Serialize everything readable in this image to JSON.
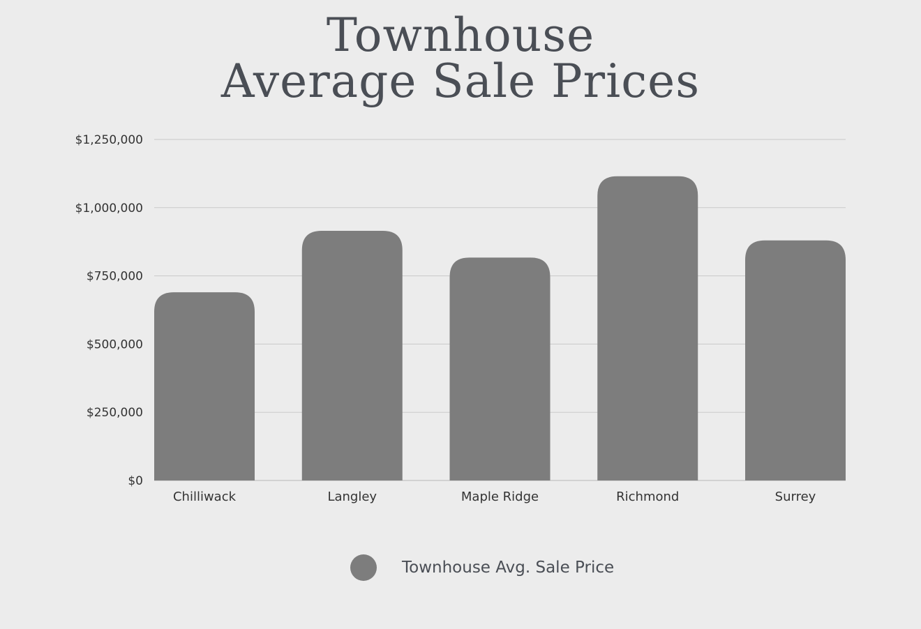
{
  "title": {
    "line1": "Townhouse",
    "line2": "Average Sale Prices"
  },
  "colors": {
    "background": "#ececec",
    "bar": "#7d7d7d",
    "grid": "#c9c9c9",
    "text": "#4a4e55",
    "tick_text": "#333333"
  },
  "legend": {
    "label": "Townhouse Avg. Sale Price",
    "position": "bottom-center"
  },
  "chart_data": {
    "type": "bar",
    "categories": [
      "Chilliwack",
      "Langley",
      "Maple Ridge",
      "Richmond",
      "Surrey"
    ],
    "series": [
      {
        "name": "Townhouse Avg. Sale Price",
        "values": [
          690000,
          915000,
          817000,
          1115000,
          880000
        ]
      }
    ],
    "title": "Townhouse Average Sale Prices",
    "xlabel": "",
    "ylabel": "",
    "ylim": [
      0,
      1250000
    ],
    "yticks": [
      0,
      250000,
      500000,
      750000,
      1000000,
      1250000
    ],
    "ytick_labels": [
      "$0",
      "$250,000",
      "$500,000",
      "$750,000",
      "$1,000,000",
      "$1,250,000"
    ],
    "grid": true,
    "legend_placement": "bottom"
  }
}
